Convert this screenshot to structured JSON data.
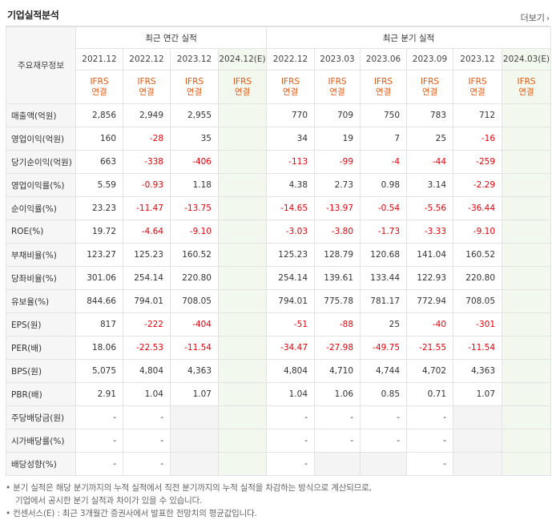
{
  "header": {
    "title": "기업실적분석",
    "more_label": "더보기"
  },
  "table": {
    "row_header_label": "주요재무정보",
    "group_annual": "최근 연간 실적",
    "group_quarter": "최근 분기 실적",
    "periods": [
      "2021.12",
      "2022.12",
      "2023.12",
      "2024.12(E)",
      "2022.12",
      "2023.03",
      "2023.06",
      "2023.09",
      "2023.12",
      "2024.03(E)"
    ],
    "ifrs_line1": "IFRS",
    "ifrs_line2": "연결",
    "rows": [
      {
        "label": "매출액(억원)",
        "values": [
          "2,856",
          "2,949",
          "2,955",
          "",
          "770",
          "709",
          "750",
          "783",
          "712",
          ""
        ]
      },
      {
        "label": "영업이익(억원)",
        "values": [
          "160",
          "-28",
          "35",
          "",
          "34",
          "19",
          "7",
          "25",
          "-16",
          ""
        ]
      },
      {
        "label": "당기순이익(억원)",
        "values": [
          "663",
          "-338",
          "-406",
          "",
          "-113",
          "-99",
          "-4",
          "-44",
          "-259",
          ""
        ]
      },
      {
        "label": "영업이익률(%)",
        "values": [
          "5.59",
          "-0.93",
          "1.18",
          "",
          "4.38",
          "2.73",
          "0.98",
          "3.14",
          "-2.29",
          ""
        ]
      },
      {
        "label": "순이익률(%)",
        "values": [
          "23.23",
          "-11.47",
          "-13.75",
          "",
          "-14.65",
          "-13.97",
          "-0.54",
          "-5.56",
          "-36.44",
          ""
        ]
      },
      {
        "label": "ROE(%)",
        "values": [
          "19.72",
          "-4.64",
          "-9.10",
          "",
          "-3.03",
          "-3.80",
          "-1.73",
          "-3.33",
          "-9.10",
          ""
        ]
      },
      {
        "label": "부채비율(%)",
        "values": [
          "123.27",
          "125.23",
          "160.52",
          "",
          "125.23",
          "128.79",
          "120.68",
          "141.04",
          "160.52",
          ""
        ]
      },
      {
        "label": "당좌비율(%)",
        "values": [
          "301.06",
          "254.14",
          "220.80",
          "",
          "254.14",
          "139.61",
          "133.44",
          "122.93",
          "220.80",
          ""
        ]
      },
      {
        "label": "유보율(%)",
        "values": [
          "844.66",
          "794.01",
          "708.05",
          "",
          "794.01",
          "775.78",
          "781.17",
          "772.94",
          "708.05",
          ""
        ]
      },
      {
        "label": "EPS(원)",
        "values": [
          "817",
          "-222",
          "-404",
          "",
          "-51",
          "-88",
          "25",
          "-40",
          "-301",
          ""
        ]
      },
      {
        "label": "PER(배)",
        "values": [
          "18.06",
          "-22.53",
          "-11.54",
          "",
          "-34.47",
          "-27.98",
          "-49.75",
          "-21.55",
          "-11.54",
          ""
        ]
      },
      {
        "label": "BPS(원)",
        "values": [
          "5,075",
          "4,804",
          "4,363",
          "",
          "4,804",
          "4,710",
          "4,744",
          "4,702",
          "4,363",
          ""
        ]
      },
      {
        "label": "PBR(배)",
        "values": [
          "2.91",
          "1.04",
          "1.07",
          "",
          "1.04",
          "1.06",
          "0.85",
          "0.71",
          "1.07",
          ""
        ]
      },
      {
        "label": "주당배당금(원)",
        "values": [
          "-",
          "-",
          "",
          "",
          "-",
          "-",
          "-",
          "-",
          "",
          ""
        ]
      },
      {
        "label": "시가배당률(%)",
        "values": [
          "-",
          "-",
          "",
          "",
          "-",
          "-",
          "-",
          "-",
          "",
          ""
        ]
      },
      {
        "label": "배당성향(%)",
        "values": [
          "-",
          "-",
          "",
          "",
          "-",
          "",
          "",
          "-",
          "",
          ""
        ]
      }
    ]
  },
  "notes": [
    "• 분기 실적은 해당 분기까지의 누적 실적에서 직전 분기까지의 누적 실적을 차감하는 방식으로 계산되므로,",
    "기업에서 공시한 분기 실적과 차이가 있을 수 있습니다.",
    "• 컨센서스(E) : 최근 3개월간 증권사에서 발표한 전망치의 평균값입니다."
  ],
  "colors": {
    "negative": "#e8000b",
    "ifrs": "#e8570d",
    "estimate_bg": "#f2f8ed",
    "blank_bg": "#f4f4f4"
  }
}
